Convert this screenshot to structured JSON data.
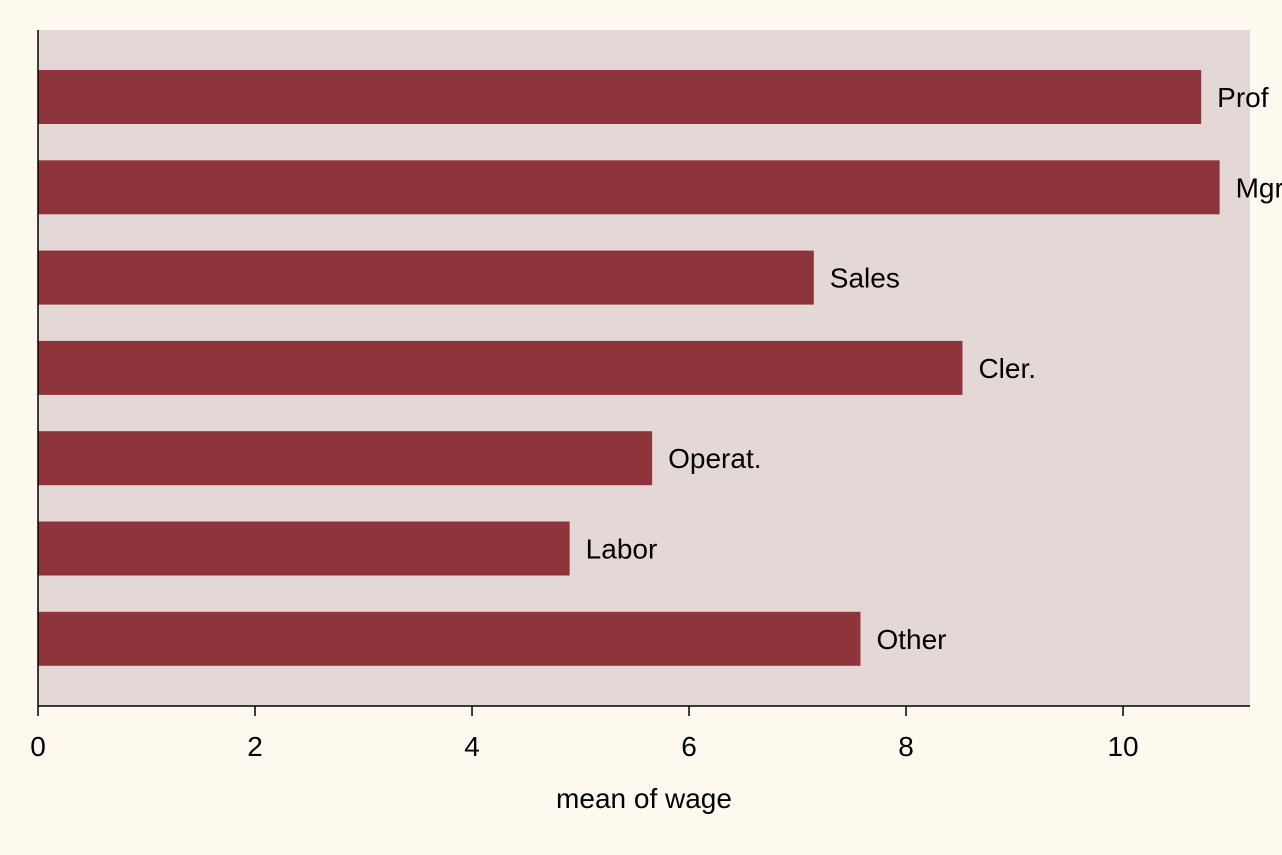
{
  "colors": {
    "page_background": "#FEF9EF",
    "plot_background": "#E4D8D7",
    "bar": "#8E353C",
    "axis": "#000000",
    "text": "#000000"
  },
  "chart_data": {
    "type": "bar",
    "orientation": "horizontal",
    "title": "",
    "xlabel": "mean of wage",
    "ylabel": "",
    "categories": [
      "Prof",
      "Mgr",
      "Sales",
      "Cler.",
      "Operat.",
      "Labor",
      "Other"
    ],
    "series": [
      {
        "values": [
          10.72,
          10.89,
          7.15,
          8.52,
          5.66,
          4.9,
          7.58
        ]
      }
    ],
    "x_ticks": [
      0,
      2,
      4,
      6,
      8,
      10
    ],
    "xlim": [
      0,
      11.17
    ],
    "grid": false,
    "legend": "none"
  }
}
